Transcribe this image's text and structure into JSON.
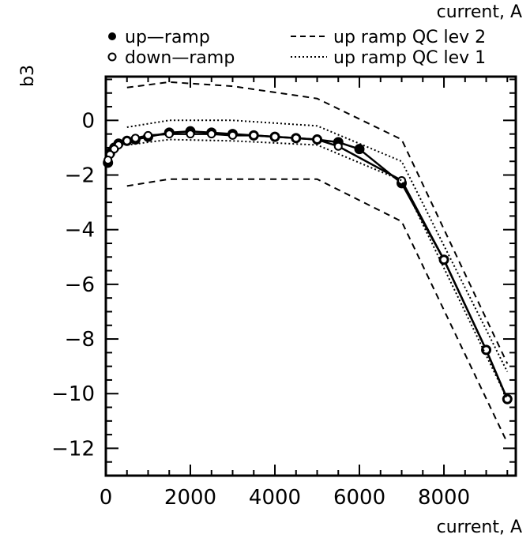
{
  "chart_data": {
    "type": "line",
    "title": "",
    "top_caption": "current, A",
    "xlabel": "current, A",
    "ylabel": "b3",
    "xlim": [
      0,
      9700
    ],
    "ylim": [
      -13,
      1.6
    ],
    "grid": false,
    "legend_position": "top",
    "x_ticks": [
      0,
      2000,
      4000,
      6000,
      8000
    ],
    "x_tick_labels": [
      "0",
      "2000",
      "4000",
      "6000",
      "8000"
    ],
    "y_ticks": [
      0,
      -2,
      -4,
      -6,
      -8,
      -10,
      -12
    ],
    "y_tick_labels": [
      "0",
      "−2",
      "−4",
      "−6",
      "−8",
      "−10",
      "−12"
    ],
    "legend": [
      {
        "label": "up—ramp",
        "marker": "filled-circle"
      },
      {
        "label": "down—ramp",
        "marker": "open-circle"
      },
      {
        "label": "up ramp QC lev 2",
        "line": "dashed"
      },
      {
        "label": "up ramp QC lev 1",
        "line": "dotted"
      }
    ],
    "series": [
      {
        "name": "up—ramp",
        "style": "solid-filled",
        "x": [
          50,
          100,
          200,
          300,
          500,
          700,
          1000,
          1500,
          2000,
          2500,
          3000,
          3500,
          4000,
          4500,
          5000,
          5500,
          6000,
          7000,
          8000,
          9000,
          9500
        ],
        "y": [
          -1.55,
          -1.2,
          -1.0,
          -0.85,
          -0.75,
          -0.7,
          -0.6,
          -0.45,
          -0.4,
          -0.45,
          -0.5,
          -0.55,
          -0.6,
          -0.65,
          -0.7,
          -0.8,
          -1.05,
          -2.3,
          -5.1,
          -8.4,
          -10.2
        ]
      },
      {
        "name": "down—ramp",
        "style": "solid-open",
        "x": [
          9500,
          9000,
          8000,
          7000,
          5500,
          5000,
          4500,
          4000,
          3500,
          3000,
          2500,
          2000,
          1500,
          1000,
          700,
          500,
          300,
          200,
          100,
          50
        ],
        "y": [
          -10.2,
          -8.4,
          -5.1,
          -2.2,
          -0.95,
          -0.7,
          -0.65,
          -0.6,
          -0.55,
          -0.55,
          -0.5,
          -0.5,
          -0.5,
          -0.55,
          -0.65,
          -0.75,
          -0.9,
          -1.05,
          -1.25,
          -1.45
        ]
      },
      {
        "name": "up ramp QC lev 2",
        "style": "dashed",
        "segments": [
          {
            "x": [
              500,
              1500,
              3000,
              5000,
              7000,
              9500
            ],
            "y": [
              1.2,
              1.4,
              1.25,
              0.8,
              -0.7,
              -8.9
            ]
          },
          {
            "x": [
              500,
              1500,
              3000,
              5000,
              7000,
              9500
            ],
            "y": [
              -2.4,
              -2.15,
              -2.15,
              -2.15,
              -3.7,
              -11.8
            ]
          }
        ]
      },
      {
        "name": "up ramp QC lev 1",
        "style": "dotted",
        "segments": [
          {
            "x": [
              500,
              1500,
              3000,
              5000,
              7000,
              9500
            ],
            "y": [
              -0.25,
              0.0,
              0.0,
              -0.2,
              -1.5,
              -9.2
            ]
          },
          {
            "x": [
              500,
              1500,
              3000,
              5000,
              7000,
              9500
            ],
            "y": [
              -0.9,
              -0.7,
              -0.75,
              -0.9,
              -2.2,
              -10.2
            ]
          }
        ]
      }
    ]
  }
}
